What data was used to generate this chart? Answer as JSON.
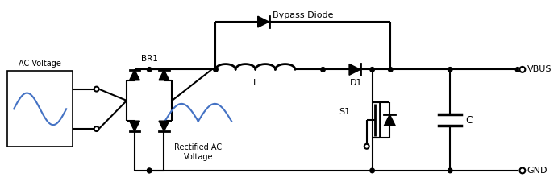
{
  "bg_color": "#ffffff",
  "line_color": "#000000",
  "blue_color": "#4472c4",
  "text_color": "#000000",
  "fig_width": 6.92,
  "fig_height": 2.41,
  "labels": {
    "ac_voltage": "AC Voltage",
    "br1": "BR1",
    "rectified": "Rectified AC\nVoltage",
    "bypass_diode": "Bypass Diode",
    "L": "L",
    "D1": "D1",
    "S1": "S1",
    "C": "C",
    "VBUS": "VBUS",
    "GND": "GND"
  }
}
